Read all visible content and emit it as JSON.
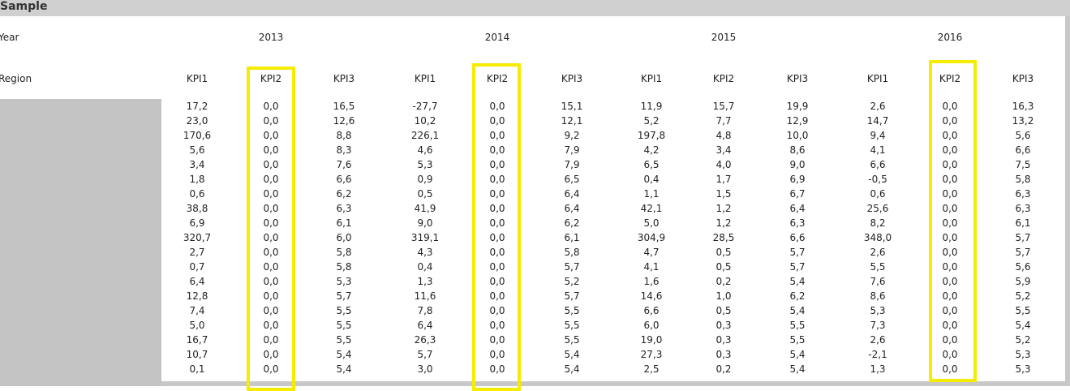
{
  "header": {
    "title": "Sample"
  },
  "table": {
    "row_labels": {
      "year": "Year",
      "region": "Region"
    },
    "years": [
      "2013",
      "2014",
      "2015",
      "2016"
    ],
    "columns": [
      "KPI1",
      "KPI2",
      "KPI3",
      "KPI1",
      "KPI2",
      "KPI3",
      "KPI1",
      "KPI2",
      "KPI3",
      "KPI1",
      "KPI2",
      "KPI3"
    ],
    "rows": [
      [
        "17,2",
        "0,0",
        "16,5",
        "-27,7",
        "0,0",
        "15,1",
        "11,9",
        "15,7",
        "19,9",
        "2,6",
        "0,0",
        "16,3"
      ],
      [
        "23,0",
        "0,0",
        "12,6",
        "10,2",
        "0,0",
        "12,1",
        "5,2",
        "7,7",
        "12,9",
        "14,7",
        "0,0",
        "13,2"
      ],
      [
        "170,6",
        "0,0",
        "8,8",
        "226,1",
        "0,0",
        "9,2",
        "197,8",
        "4,8",
        "10,0",
        "9,4",
        "0,0",
        "5,6"
      ],
      [
        "5,6",
        "0,0",
        "8,3",
        "4,6",
        "0,0",
        "7,9",
        "4,2",
        "3,4",
        "8,6",
        "4,1",
        "0,0",
        "6,6"
      ],
      [
        "3,4",
        "0,0",
        "7,6",
        "5,3",
        "0,0",
        "7,9",
        "6,5",
        "4,0",
        "9,0",
        "6,6",
        "0,0",
        "7,5"
      ],
      [
        "1,8",
        "0,0",
        "6,6",
        "0,9",
        "0,0",
        "6,5",
        "0,4",
        "1,7",
        "6,9",
        "-0,5",
        "0,0",
        "5,8"
      ],
      [
        "0,6",
        "0,0",
        "6,2",
        "0,5",
        "0,0",
        "6,4",
        "1,1",
        "1,5",
        "6,7",
        "0,6",
        "0,0",
        "6,3"
      ],
      [
        "38,8",
        "0,0",
        "6,3",
        "41,9",
        "0,0",
        "6,4",
        "42,1",
        "1,2",
        "6,4",
        "25,6",
        "0,0",
        "6,3"
      ],
      [
        "6,9",
        "0,0",
        "6,1",
        "9,0",
        "0,0",
        "6,2",
        "5,0",
        "1,2",
        "6,3",
        "8,2",
        "0,0",
        "6,1"
      ],
      [
        "320,7",
        "0,0",
        "6,0",
        "319,1",
        "0,0",
        "6,1",
        "304,9",
        "28,5",
        "6,6",
        "348,0",
        "0,0",
        "5,7"
      ],
      [
        "2,7",
        "0,0",
        "5,8",
        "4,3",
        "0,0",
        "5,8",
        "4,7",
        "0,5",
        "5,7",
        "2,6",
        "0,0",
        "5,7"
      ],
      [
        "0,7",
        "0,0",
        "5,8",
        "0,4",
        "0,0",
        "5,7",
        "4,1",
        "0,5",
        "5,7",
        "5,5",
        "0,0",
        "5,6"
      ],
      [
        "6,4",
        "0,0",
        "5,3",
        "1,3",
        "0,0",
        "5,2",
        "1,6",
        "0,2",
        "5,4",
        "7,6",
        "0,0",
        "5,9"
      ],
      [
        "12,8",
        "0,0",
        "5,7",
        "11,6",
        "0,0",
        "5,7",
        "14,6",
        "1,0",
        "6,2",
        "8,6",
        "0,0",
        "5,2"
      ],
      [
        "7,4",
        "0,0",
        "5,5",
        "7,8",
        "0,0",
        "5,5",
        "6,6",
        "0,5",
        "5,4",
        "5,3",
        "0,0",
        "5,5"
      ],
      [
        "5,0",
        "0,0",
        "5,5",
        "6,4",
        "0,0",
        "5,5",
        "6,0",
        "0,3",
        "5,5",
        "7,3",
        "0,0",
        "5,4"
      ],
      [
        "16,7",
        "0,0",
        "5,5",
        "26,3",
        "0,0",
        "5,5",
        "19,0",
        "0,3",
        "5,5",
        "2,6",
        "0,0",
        "5,2"
      ],
      [
        "10,7",
        "0,0",
        "5,4",
        "5,7",
        "0,0",
        "5,4",
        "27,3",
        "0,3",
        "5,4",
        "-2,1",
        "0,0",
        "5,3"
      ],
      [
        "0,1",
        "0,0",
        "5,4",
        "3,0",
        "0,0",
        "5,4",
        "2,5",
        "0,2",
        "5,4",
        "1,3",
        "0,0",
        "5,3"
      ]
    ]
  }
}
